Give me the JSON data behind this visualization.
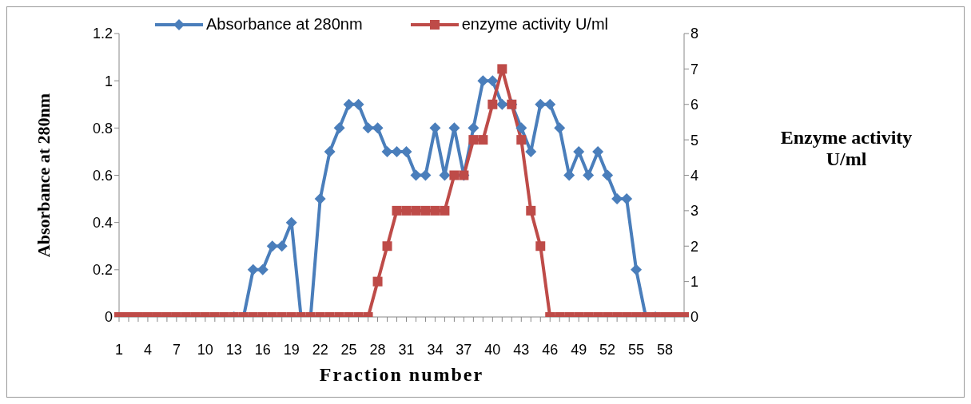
{
  "chart_data": {
    "type": "line",
    "xlabel": "Fraction number",
    "ylabel": "Absorbance at 280nm",
    "y2label": "Enzyme activity U/ml",
    "categories": [
      "1",
      null,
      null,
      "4",
      null,
      null,
      "7",
      null,
      null,
      "10",
      null,
      null,
      "13",
      null,
      null,
      "16",
      null,
      null,
      "19",
      null,
      null,
      "22",
      null,
      null,
      "25",
      null,
      null,
      "28",
      null,
      null,
      "31",
      null,
      null,
      "34",
      null,
      null,
      "37",
      null,
      null,
      "40",
      null,
      null,
      "43",
      null,
      null,
      "46",
      null,
      null,
      "49",
      null,
      null,
      "52",
      null,
      null,
      "55",
      null,
      null,
      "58",
      null,
      null
    ],
    "series": [
      {
        "name": "Absorbance at 280nm",
        "color": "#4a7ebb",
        "marker": "diamond",
        "values": [
          null,
          null,
          null,
          null,
          null,
          null,
          null,
          null,
          null,
          null,
          null,
          null,
          0,
          0,
          0.2,
          0.2,
          0.3,
          0.3,
          0.4,
          0,
          0,
          0.5,
          0.7,
          0.8,
          0.9,
          0.9,
          0.8,
          0.8,
          0.7,
          0.7,
          0.7,
          0.6,
          0.6,
          0.8,
          0.6,
          0.8,
          0.6,
          0.8,
          1.0,
          1.0,
          0.9,
          0.9,
          0.8,
          0.7,
          0.9,
          0.9,
          0.8,
          0.6,
          0.7,
          0.6,
          0.7,
          0.6,
          0.5,
          0.5,
          0.2,
          0,
          0,
          null,
          null,
          null
        ]
      },
      {
        "name": "enzyme activity U/ml",
        "color": "#be4b48",
        "marker": "square",
        "axis": "y2",
        "values": [
          0,
          0,
          0,
          0,
          0,
          0,
          0,
          0,
          0,
          0,
          0,
          0,
          0,
          0,
          0,
          0,
          0,
          0,
          0,
          0,
          0,
          0,
          0,
          0,
          0,
          0,
          0,
          1,
          2,
          3,
          3,
          3,
          3,
          3,
          3,
          4,
          4,
          5,
          5,
          6,
          7,
          6,
          5,
          3,
          2,
          0,
          0,
          0,
          0,
          0,
          0,
          0,
          0,
          0,
          0,
          0,
          0,
          0,
          0,
          0
        ]
      }
    ],
    "ylim": [
      0,
      1.2
    ],
    "yticks": [
      0,
      0.2,
      0.4,
      0.6,
      0.8,
      1,
      1.2
    ],
    "y2lim": [
      0,
      8
    ],
    "y2ticks": [
      0,
      1,
      2,
      3,
      4,
      5,
      6,
      7,
      8
    ],
    "legend": "top",
    "grid": false,
    "line_style": "solid"
  }
}
